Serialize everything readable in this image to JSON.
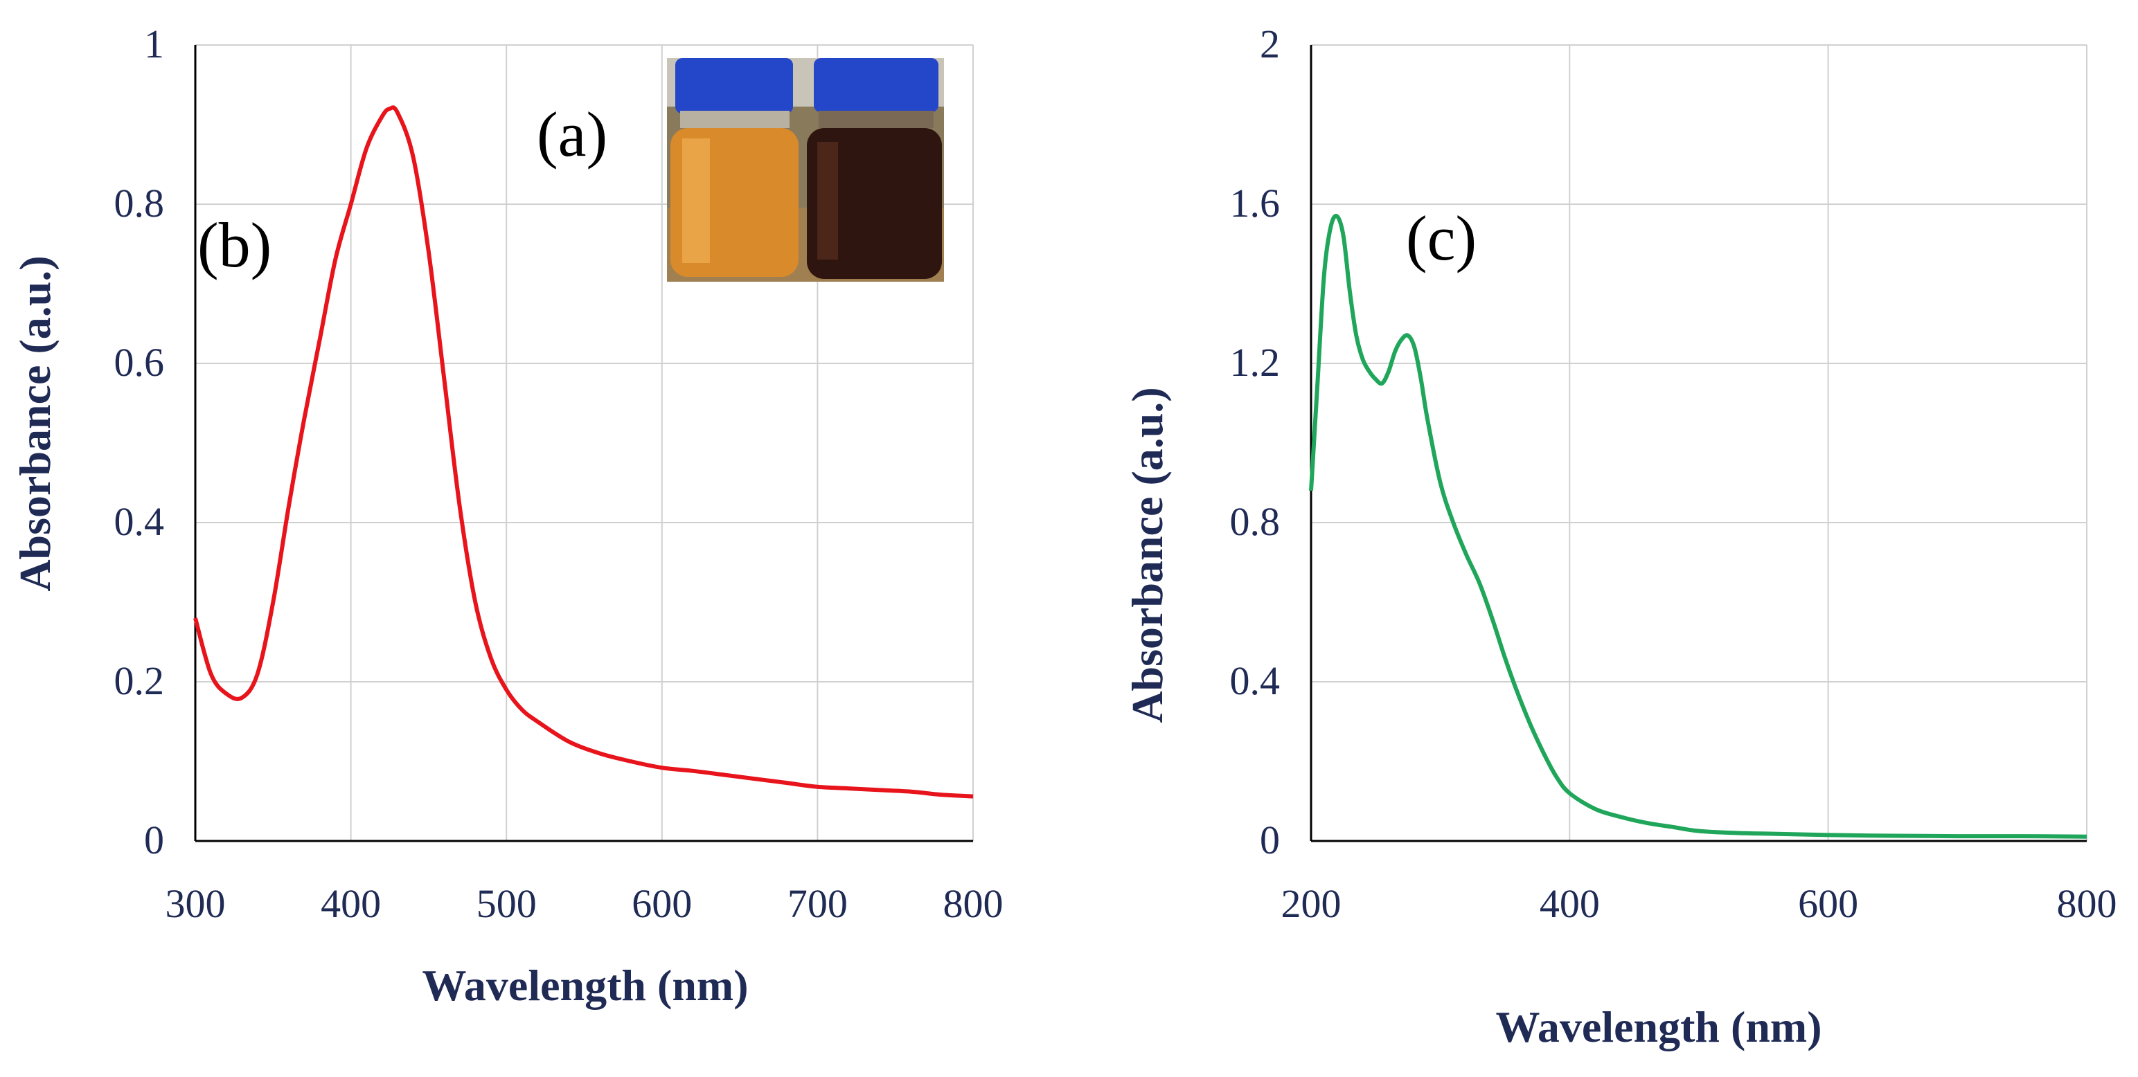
{
  "colors": {
    "axis_text": "#1f2a55",
    "grid": "#d0d0d0",
    "axis_line": "#000000",
    "series_b": "#e8141b",
    "series_c": "#1fa65a"
  },
  "inset": {
    "label": "(a)",
    "image": "photo of two glass bottles with blue caps: left holds amber/orange liquid, right holds dark brown/black liquid"
  },
  "chart_data": [
    {
      "type": "line",
      "panel_label": "(b)",
      "xlabel": "Wavelength (nm)",
      "ylabel": "Absorbance (a.u.)",
      "xlim": [
        300,
        800
      ],
      "ylim": [
        0,
        1
      ],
      "x_ticks": [
        "300",
        "400",
        "500",
        "600",
        "700",
        "800"
      ],
      "y_ticks": [
        "0",
        "0.2",
        "0.4",
        "0.6",
        "0.8",
        "1"
      ],
      "grid": true,
      "series": [
        {
          "color": "#e8141b",
          "x": [
            300,
            310,
            320,
            330,
            340,
            350,
            360,
            370,
            380,
            390,
            400,
            410,
            420,
            425,
            430,
            440,
            450,
            460,
            470,
            480,
            490,
            500,
            510,
            520,
            540,
            560,
            580,
            600,
            620,
            640,
            660,
            680,
            700,
            720,
            740,
            760,
            770,
            780,
            790,
            800
          ],
          "y": [
            0.28,
            0.21,
            0.185,
            0.18,
            0.21,
            0.3,
            0.42,
            0.53,
            0.63,
            0.73,
            0.8,
            0.87,
            0.91,
            0.92,
            0.915,
            0.86,
            0.74,
            0.58,
            0.42,
            0.3,
            0.23,
            0.19,
            0.165,
            0.15,
            0.125,
            0.11,
            0.1,
            0.092,
            0.088,
            0.083,
            0.078,
            0.073,
            0.068,
            0.066,
            0.064,
            0.062,
            0.06,
            0.058,
            0.057,
            0.056
          ]
        }
      ]
    },
    {
      "type": "line",
      "panel_label": "(c)",
      "xlabel": "Wavelength (nm)",
      "ylabel": "Absorbance (a.u.)",
      "xlim": [
        200,
        800
      ],
      "ylim": [
        0,
        2
      ],
      "x_ticks": [
        "200",
        "400",
        "600",
        "800"
      ],
      "y_ticks": [
        "0",
        "0.4",
        "0.8",
        "1.2",
        "1.6",
        "2"
      ],
      "grid": true,
      "series": [
        {
          "color": "#1fa65a",
          "x": [
            200,
            205,
            210,
            215,
            220,
            225,
            230,
            235,
            240,
            245,
            250,
            255,
            260,
            265,
            270,
            275,
            280,
            285,
            290,
            300,
            310,
            320,
            330,
            340,
            350,
            360,
            370,
            380,
            390,
            400,
            420,
            440,
            460,
            480,
            500,
            530,
            560,
            600,
            650,
            700,
            750,
            800
          ],
          "y": [
            0.88,
            1.15,
            1.42,
            1.54,
            1.57,
            1.52,
            1.38,
            1.27,
            1.21,
            1.18,
            1.16,
            1.15,
            1.18,
            1.23,
            1.26,
            1.27,
            1.24,
            1.16,
            1.06,
            0.9,
            0.8,
            0.72,
            0.65,
            0.56,
            0.46,
            0.37,
            0.29,
            0.22,
            0.16,
            0.12,
            0.08,
            0.06,
            0.045,
            0.035,
            0.025,
            0.02,
            0.018,
            0.015,
            0.013,
            0.012,
            0.012,
            0.011
          ]
        }
      ]
    }
  ]
}
